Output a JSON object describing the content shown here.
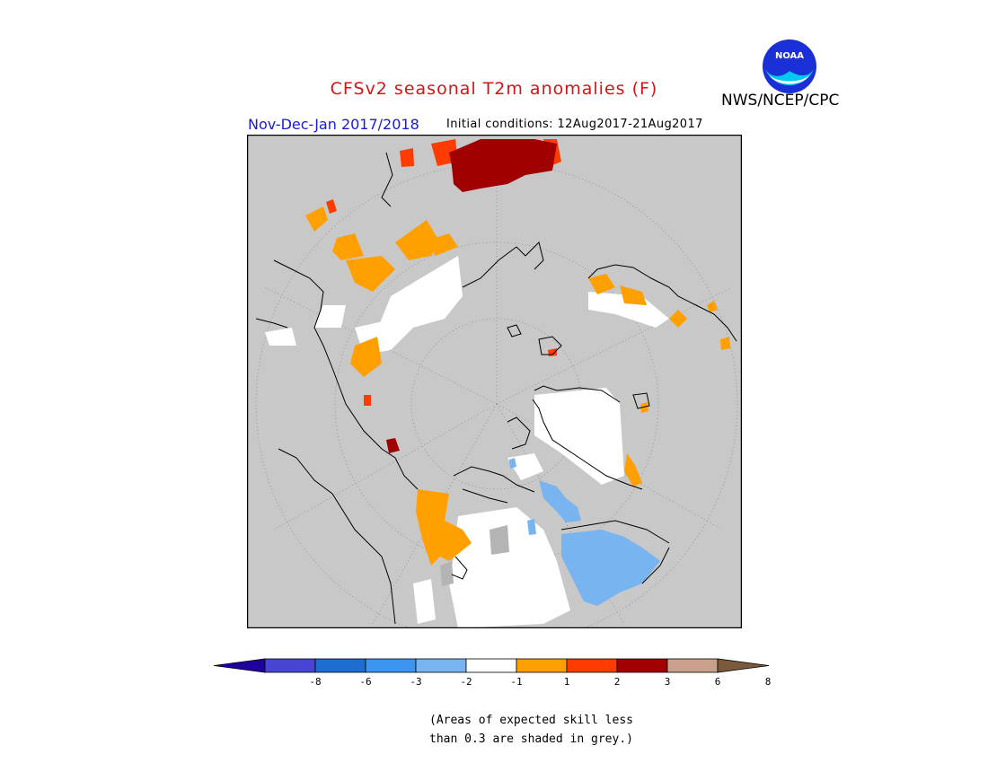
{
  "title": "CFSv2 seasonal T2m anomalies (F)",
  "agency": "NWS/NCEP/CPC",
  "logo": {
    "text": "NOAA",
    "icon": "noaa-logo-icon"
  },
  "season_label": "Nov-Dec-Jan 2017/2018",
  "initial_conditions": "Initial conditions: 12Aug2017-21Aug2017",
  "legend": {
    "labels": [
      "-8",
      "-6",
      "-3",
      "-2",
      "-1",
      "1",
      "2",
      "3",
      "6",
      "8"
    ],
    "colors": [
      "#1e00a0",
      "#4646d2",
      "#1e6ed2",
      "#3c96f0",
      "#78b4f0",
      "#ffffff",
      "#ffa000",
      "#ff3c00",
      "#a00000",
      "#c8a08c",
      "#7a5a3a"
    ]
  },
  "skill_note": {
    "line1": "(Areas of expected skill less",
    "line2": "than 0.3 are shaded in grey.)"
  },
  "colors": {
    "grey_low_skill": "#c8c8c8",
    "coast": "#000000",
    "title": "#d21414",
    "season": "#1a1ad2"
  }
}
